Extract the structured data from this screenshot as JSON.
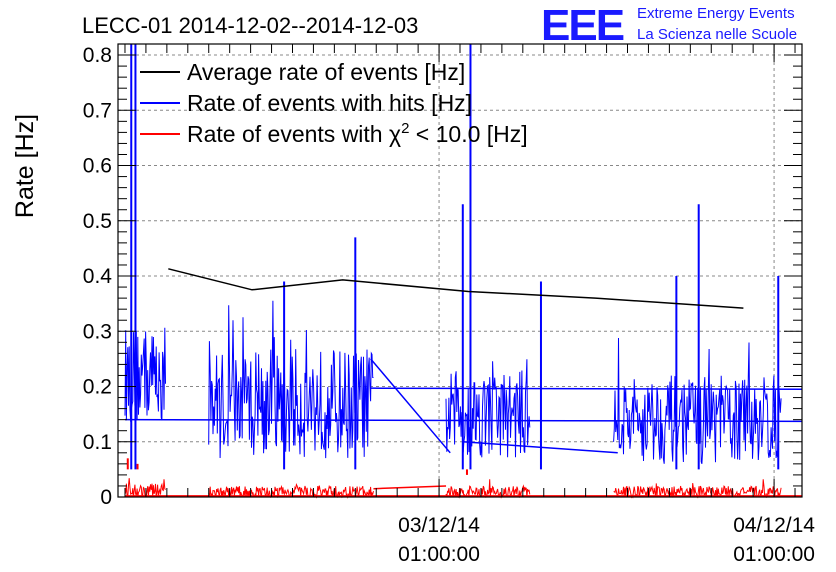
{
  "chart_data": {
    "type": "line",
    "title": "LECC-01 2014-12-02--2014-12-03",
    "ylabel": "Rate [Hz]",
    "xlabel": "",
    "ylim": [
      0,
      0.82
    ],
    "yticks": [
      "0",
      "0.1",
      "0.2",
      "0.3",
      "0.4",
      "0.5",
      "0.6",
      "0.7",
      "0.8"
    ],
    "xticks": [
      {
        "t": 22.5,
        "date": "03/12/14",
        "time": "01:00:00"
      },
      {
        "t": 46.5,
        "date": "04/12/14",
        "time": "01:00:00"
      }
    ],
    "grid": true,
    "legend_position": "top-left",
    "series": [
      {
        "name": "Average rate of events [Hz]",
        "color": "#000000",
        "kind": "line",
        "points": [
          [
            3.1,
            0.413
          ],
          [
            9.1,
            0.375
          ],
          [
            15.6,
            0.393
          ],
          [
            24.6,
            0.372
          ],
          [
            33.7,
            0.36
          ],
          [
            44.3,
            0.342
          ]
        ]
      },
      {
        "name": "Rate of events with hits [Hz]",
        "color": "#0000ff",
        "kind": "noisy",
        "segments": [
          {
            "start": 0.0,
            "end": 2.9,
            "mean": 0.22,
            "amp": 0.09
          },
          {
            "start": 6.0,
            "end": 17.8,
            "mean": 0.17,
            "amp": 0.1
          },
          {
            "start": 23.0,
            "end": 29.0,
            "mean": 0.15,
            "amp": 0.08
          },
          {
            "start": 35.0,
            "end": 47.0,
            "mean": 0.14,
            "amp": 0.08
          }
        ],
        "spikes": [
          [
            0.45,
            0.82
          ],
          [
            0.75,
            0.82
          ],
          [
            11.4,
            0.39
          ],
          [
            16.5,
            0.47
          ],
          [
            24.2,
            0.53
          ],
          [
            24.75,
            0.82
          ],
          [
            29.8,
            0.39
          ],
          [
            39.5,
            0.4
          ],
          [
            41.1,
            0.53
          ],
          [
            46.8,
            0.4
          ]
        ],
        "connectors": [
          [
            [
              0.0,
              0.14
            ],
            [
              48.5,
              0.137
            ]
          ],
          [
            [
              17.6,
              0.25
            ],
            [
              23.3,
              0.08
            ]
          ],
          [
            [
              17.6,
              0.197
            ],
            [
              48.5,
              0.195
            ]
          ],
          [
            [
              24.2,
              0.1
            ],
            [
              35.3,
              0.08
            ]
          ]
        ]
      },
      {
        "name": "Rate of events with χ² < 10.0 [Hz]",
        "color": "#ff0000",
        "kind": "noisy",
        "segments": [
          {
            "start": 0.0,
            "end": 2.9,
            "mean": 0.01,
            "amp": 0.015
          },
          {
            "start": 6.0,
            "end": 17.8,
            "mean": 0.008,
            "amp": 0.012
          },
          {
            "start": 23.0,
            "end": 29.0,
            "mean": 0.008,
            "amp": 0.012
          },
          {
            "start": 35.0,
            "end": 47.0,
            "mean": 0.008,
            "amp": 0.012
          }
        ],
        "spikes": [
          [
            0.2,
            0.07
          ],
          [
            0.9,
            0.06
          ],
          [
            24.5,
            0.04
          ]
        ],
        "connectors": [
          [
            [
              0.0,
              0.002
            ],
            [
              48.5,
              0.002
            ]
          ],
          [
            [
              17.8,
              0.015
            ],
            [
              23.0,
              0.02
            ]
          ]
        ]
      }
    ]
  },
  "logo": {
    "mark": "EEE",
    "line1": "Extreme Energy Events",
    "line2": "La Scienza nelle Scuole"
  },
  "legend": {
    "avg": "Average rate of events [Hz]",
    "hits": "Rate of events with hits [Hz]",
    "chi_prefix": "Rate of events with ",
    "chi_symbol": "χ",
    "chi_exp": "2",
    "chi_suffix": " < 10.0 [Hz]"
  }
}
